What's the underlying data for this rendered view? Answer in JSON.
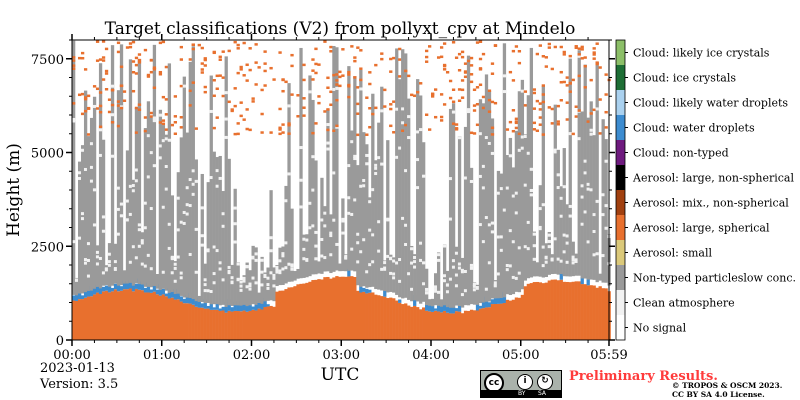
{
  "chart_data": {
    "type": "heatmap",
    "title": "Target classifications (V2) from pollyxt_cpv at Mindelo",
    "xlabel": "UTC",
    "ylabel": "Height (m)",
    "x_range": [
      "00:00",
      "05:59"
    ],
    "x_ticks": [
      "00:00",
      "01:00",
      "02:00",
      "03:00",
      "04:00",
      "05:00",
      "05:59"
    ],
    "x_tick_minutes": [
      0,
      60,
      120,
      180,
      240,
      300,
      359
    ],
    "ylim": [
      0,
      8000
    ],
    "y_ticks": [
      0,
      2500,
      5000,
      7500
    ],
    "y_tick_labels": [
      "0",
      "2500",
      "5000",
      "7500"
    ],
    "classes": [
      {
        "label": "No signal",
        "color": "#ffffff"
      },
      {
        "label": "Clean atmosphere",
        "color": "#f2f2f2"
      },
      {
        "label": "Non-typed particleslow conc.",
        "color": "#9a9a9a"
      },
      {
        "label": "Aerosol: small",
        "color": "#dbc97a"
      },
      {
        "label": "Aerosol: large, spherical",
        "color": "#e8702e"
      },
      {
        "label": "Aerosol: mix., non-spherical",
        "color": "#a1400f"
      },
      {
        "label": "Aerosol: large, non-spherical",
        "color": "#000000"
      },
      {
        "label": "Cloud: non-typed",
        "color": "#6e1a7e"
      },
      {
        "label": "Cloud: water droplets",
        "color": "#3d8cd0"
      },
      {
        "label": "Cloud: likely water droplets",
        "color": "#aad1ef"
      },
      {
        "label": "Cloud: ice crystals",
        "color": "#1e6e35"
      },
      {
        "label": "Cloud: likely ice crystals",
        "color": "#8cbf68"
      }
    ],
    "layers_summary": {
      "surface_aerosol_large_spherical_top_m": 1200,
      "water_cloud_layer_m": [
        1000,
        1400
      ],
      "non_typed_particles_top_m": 8000,
      "ice_crystals_scattered_above_m": 5500
    },
    "grid": false,
    "legend_placement": "right colorbar"
  },
  "meta": {
    "date": "2023-01-13",
    "version": "Version: 3.5",
    "preliminary": "Preliminary Results.",
    "copyright_line1": "© TROPOS & OSCM 2023.",
    "copyright_line2": "CC BY SA 4.0 License.",
    "cc_badge": {
      "cc": "cc",
      "by": "BY",
      "sa": "SA"
    }
  }
}
